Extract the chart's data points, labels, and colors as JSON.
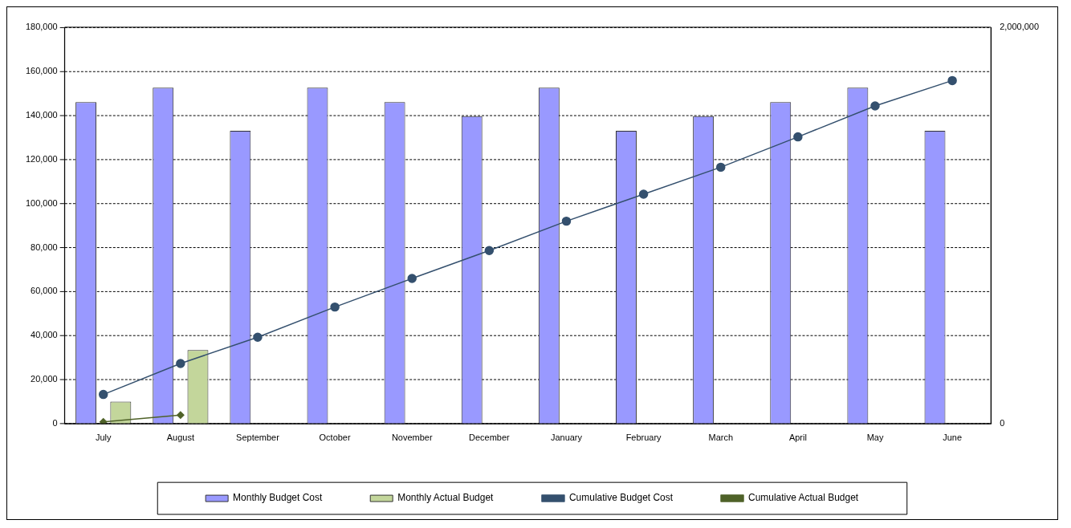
{
  "chart_data": {
    "type": "bar",
    "categories": [
      "July",
      "August",
      "September",
      "October",
      "November",
      "December",
      "January",
      "February",
      "March",
      "April",
      "May",
      "June"
    ],
    "series": [
      {
        "name": "Monthly Budget Cost",
        "color": "#9999ff",
        "values": [
          146000,
          152600,
          133000,
          152600,
          146000,
          139600,
          152600,
          133000,
          139600,
          146000,
          152600,
          133000
        ]
      },
      {
        "name": "Monthly Actual Budget",
        "color": "#c3d69b",
        "values": [
          10100,
          33500,
          null,
          null,
          null,
          null,
          null,
          null,
          null,
          null,
          null,
          null
        ]
      },
      {
        "name": "Cumulative Budget Cost",
        "type": "line",
        "axis": "y2",
        "color": "#34506e",
        "marker": "circle",
        "values": [
          148000,
          304000,
          437000,
          589000,
          733000,
          874000,
          1022000,
          1158000,
          1294000,
          1447000,
          1603000,
          1731000
        ]
      },
      {
        "name": "Cumulative Actual Budget",
        "type": "line",
        "axis": "y2",
        "color": "#4f6228",
        "marker": "diamond",
        "values": [
          10000,
          44000,
          null,
          null,
          null,
          null,
          null,
          null,
          null,
          null,
          null,
          null
        ]
      }
    ],
    "ylim": [
      0,
      180000
    ],
    "yticks": [
      {
        "value": 0,
        "label": "0"
      },
      {
        "value": 20000,
        "label": "20,000"
      },
      {
        "value": 40000,
        "label": "40,000"
      },
      {
        "value": 60000,
        "label": "60,000"
      },
      {
        "value": 80000,
        "label": "80,000"
      },
      {
        "value": 100000,
        "label": "100,000"
      },
      {
        "value": 120000,
        "label": "120,000"
      },
      {
        "value": 140000,
        "label": "140,000"
      },
      {
        "value": 160000,
        "label": "160,000"
      },
      {
        "value": 180000,
        "label": "180,000"
      }
    ],
    "y2lim": [
      0,
      2000000
    ],
    "y2ticks": [
      {
        "value": 0,
        "label": "0"
      },
      {
        "value": 2000000,
        "label": "2,000,000"
      }
    ],
    "grid": "y",
    "legend": "bottom"
  }
}
